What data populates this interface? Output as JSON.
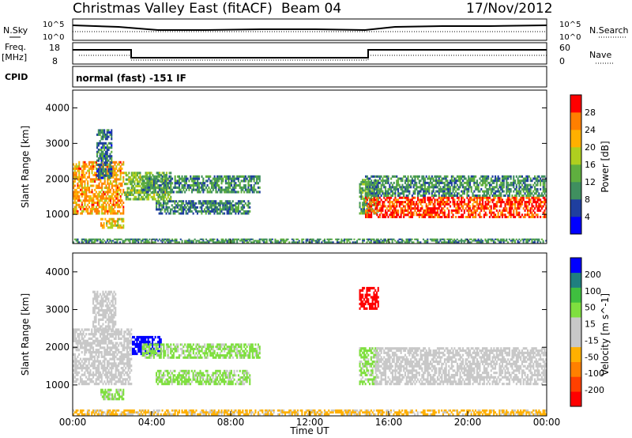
{
  "header": {
    "title": "Christmas Valley East (fitACF)",
    "beam": "Beam 04",
    "date": "17/Nov/2012"
  },
  "panels": {
    "nsky_label": "N.Sky",
    "nsky_ticks": [
      "10^5",
      "10^0"
    ],
    "nsearch_label": "N.Search",
    "nsearch_ticks": [
      "10^5",
      "10^0"
    ],
    "freq_label": "Freq.",
    "freq_unit": "[MHz]",
    "freq_ticks": [
      "18",
      "8"
    ],
    "nave_label": "Nave",
    "nave_ticks": [
      "60",
      "0"
    ],
    "cpid_label": "CPID",
    "cpid_value": "normal (fast) -151 IF"
  },
  "colors": {
    "power_scale": [
      "#0000ff",
      "#1f3f9f",
      "#3f8f5f",
      "#5faf3f",
      "#afcf1f",
      "#ffb000",
      "#ff7f00",
      "#ff0000"
    ],
    "velocity_scale": [
      "#ff0000",
      "#ff4000",
      "#ff8000",
      "#ffb000",
      "#c8c8c8",
      "#c8c8c8",
      "#7fdf3f",
      "#3fbf3f",
      "#1f7f7f",
      "#0000ff"
    ],
    "background_gray": "#c8c8c8"
  },
  "chart_data": [
    {
      "type": "heatmap",
      "name": "power",
      "ylabel": "Slant Range [km]",
      "xlabel": "Time UT",
      "x_ticks": [
        "00:00",
        "04:00",
        "08:00",
        "12:00",
        "16:00",
        "20:00",
        "00:00"
      ],
      "y_ticks": [
        1000,
        2000,
        3000,
        4000
      ],
      "ylim": [
        180,
        4500
      ],
      "colorbar": {
        "label": "Power [dB]",
        "ticks": [
          "28",
          "24",
          "20",
          "16",
          "12",
          "8",
          "4"
        ],
        "range": [
          0,
          30
        ]
      },
      "regions": [
        {
          "t0": 0.0,
          "t1": 2.6,
          "r0": 1000,
          "r1": 2500,
          "level": 22
        },
        {
          "t0": 2.6,
          "t1": 5.0,
          "r0": 1400,
          "r1": 2200,
          "level": 14
        },
        {
          "t0": 1.2,
          "t1": 2.0,
          "r0": 2000,
          "r1": 3400,
          "level": 8
        },
        {
          "t0": 3.5,
          "t1": 9.5,
          "r0": 1600,
          "r1": 2100,
          "level": 10
        },
        {
          "t0": 4.2,
          "t1": 9.0,
          "r0": 1000,
          "r1": 1400,
          "level": 9
        },
        {
          "t0": 1.4,
          "t1": 2.6,
          "r0": 600,
          "r1": 900,
          "level": 19
        },
        {
          "t0": 0.0,
          "t1": 24.0,
          "r0": 200,
          "r1": 320,
          "level": 10
        },
        {
          "t0": 14.5,
          "t1": 15.5,
          "r0": 1000,
          "r1": 2000,
          "level": 12
        },
        {
          "t0": 14.8,
          "t1": 24.0,
          "r0": 900,
          "r1": 1500,
          "level": 27
        },
        {
          "t0": 14.8,
          "t1": 24.0,
          "r0": 1500,
          "r1": 2100,
          "level": 10
        }
      ]
    },
    {
      "type": "heatmap",
      "name": "velocity",
      "ylabel": "Slant Range [km]",
      "xlabel": "Time UT",
      "x_ticks": [
        "00:00",
        "04:00",
        "08:00",
        "12:00",
        "16:00",
        "20:00",
        "00:00"
      ],
      "y_ticks": [
        1000,
        2000,
        3000,
        4000
      ],
      "ylim": [
        180,
        4500
      ],
      "colorbar": {
        "label": "Velocity [m s^-1]",
        "ticks": [
          "200",
          "100",
          "50",
          "15",
          "-15",
          "-50",
          "-100",
          "-200"
        ],
        "range": [
          -250,
          250
        ]
      },
      "regions": [
        {
          "t0": 0.0,
          "t1": 3.0,
          "r0": 1000,
          "r1": 2500,
          "level": 0
        },
        {
          "t0": 1.0,
          "t1": 2.2,
          "r0": 2400,
          "r1": 3500,
          "level": 0
        },
        {
          "t0": 3.0,
          "t1": 4.5,
          "r0": 1800,
          "r1": 2300,
          "level": 230
        },
        {
          "t0": 3.5,
          "t1": 9.5,
          "r0": 1700,
          "r1": 2100,
          "level": 60
        },
        {
          "t0": 4.2,
          "t1": 9.0,
          "r0": 1000,
          "r1": 1400,
          "level": 60
        },
        {
          "t0": 1.4,
          "t1": 2.6,
          "r0": 600,
          "r1": 900,
          "level": 60
        },
        {
          "t0": 0.0,
          "t1": 24.0,
          "r0": 200,
          "r1": 350,
          "level": -60
        },
        {
          "t0": 14.5,
          "t1": 15.5,
          "r0": 3000,
          "r1": 3600,
          "level": -230
        },
        {
          "t0": 14.5,
          "t1": 15.5,
          "r0": 1000,
          "r1": 2000,
          "level": 60
        },
        {
          "t0": 15.3,
          "t1": 24.0,
          "r0": 1000,
          "r1": 2000,
          "level": 0
        }
      ]
    }
  ]
}
